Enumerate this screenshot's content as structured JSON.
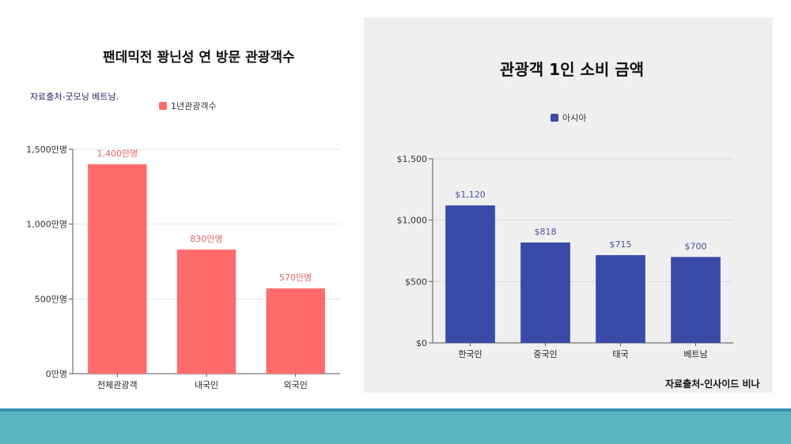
{
  "left": {
    "title": "팬데믹전  꽝닌성 연 방문 관광객수",
    "source": "자료출처-굿모닝 베트남.",
    "legend_label": "1년관광객수",
    "color": "#ff6b6b",
    "label_color": "#e06666"
  },
  "right": {
    "title": "관광객 1인 소비 금액",
    "source": "자료출처-인사이드 비나",
    "legend_label": "아시아",
    "color": "#3a4aa8",
    "label_color": "#4a5299",
    "background": "#efefef"
  },
  "chart_data": [
    {
      "type": "bar",
      "title": "팬데믹전  꽝닌성 연 방문 관광객수",
      "categories": [
        "전체관광객",
        "내국인",
        "외국인"
      ],
      "series": [
        {
          "name": "1년관광객수",
          "values": [
            1400,
            830,
            570
          ]
        }
      ],
      "data_labels": [
        "1,400만명",
        "830만명",
        "570만명"
      ],
      "y_ticks": [
        0,
        500,
        1000,
        1500
      ],
      "y_tick_labels": [
        "0만명",
        "500만명",
        "1,000만명",
        "1,500만명"
      ],
      "ylim": [
        0,
        1500
      ],
      "grid": true,
      "legend_position": "top"
    },
    {
      "type": "bar",
      "title": "관광객 1인 소비 금액",
      "categories": [
        "한국인",
        "중국인",
        "태국",
        "베트남"
      ],
      "series": [
        {
          "name": "아시아",
          "values": [
            1120,
            818,
            715,
            700
          ]
        }
      ],
      "data_labels": [
        "$1,120",
        "$818",
        "$715",
        "$700"
      ],
      "y_ticks": [
        0,
        500,
        1000,
        1500
      ],
      "y_tick_labels": [
        "$0",
        "$500",
        "$1,000",
        "$1,500"
      ],
      "ylim": [
        0,
        1500
      ],
      "grid": true,
      "legend_position": "top"
    }
  ]
}
